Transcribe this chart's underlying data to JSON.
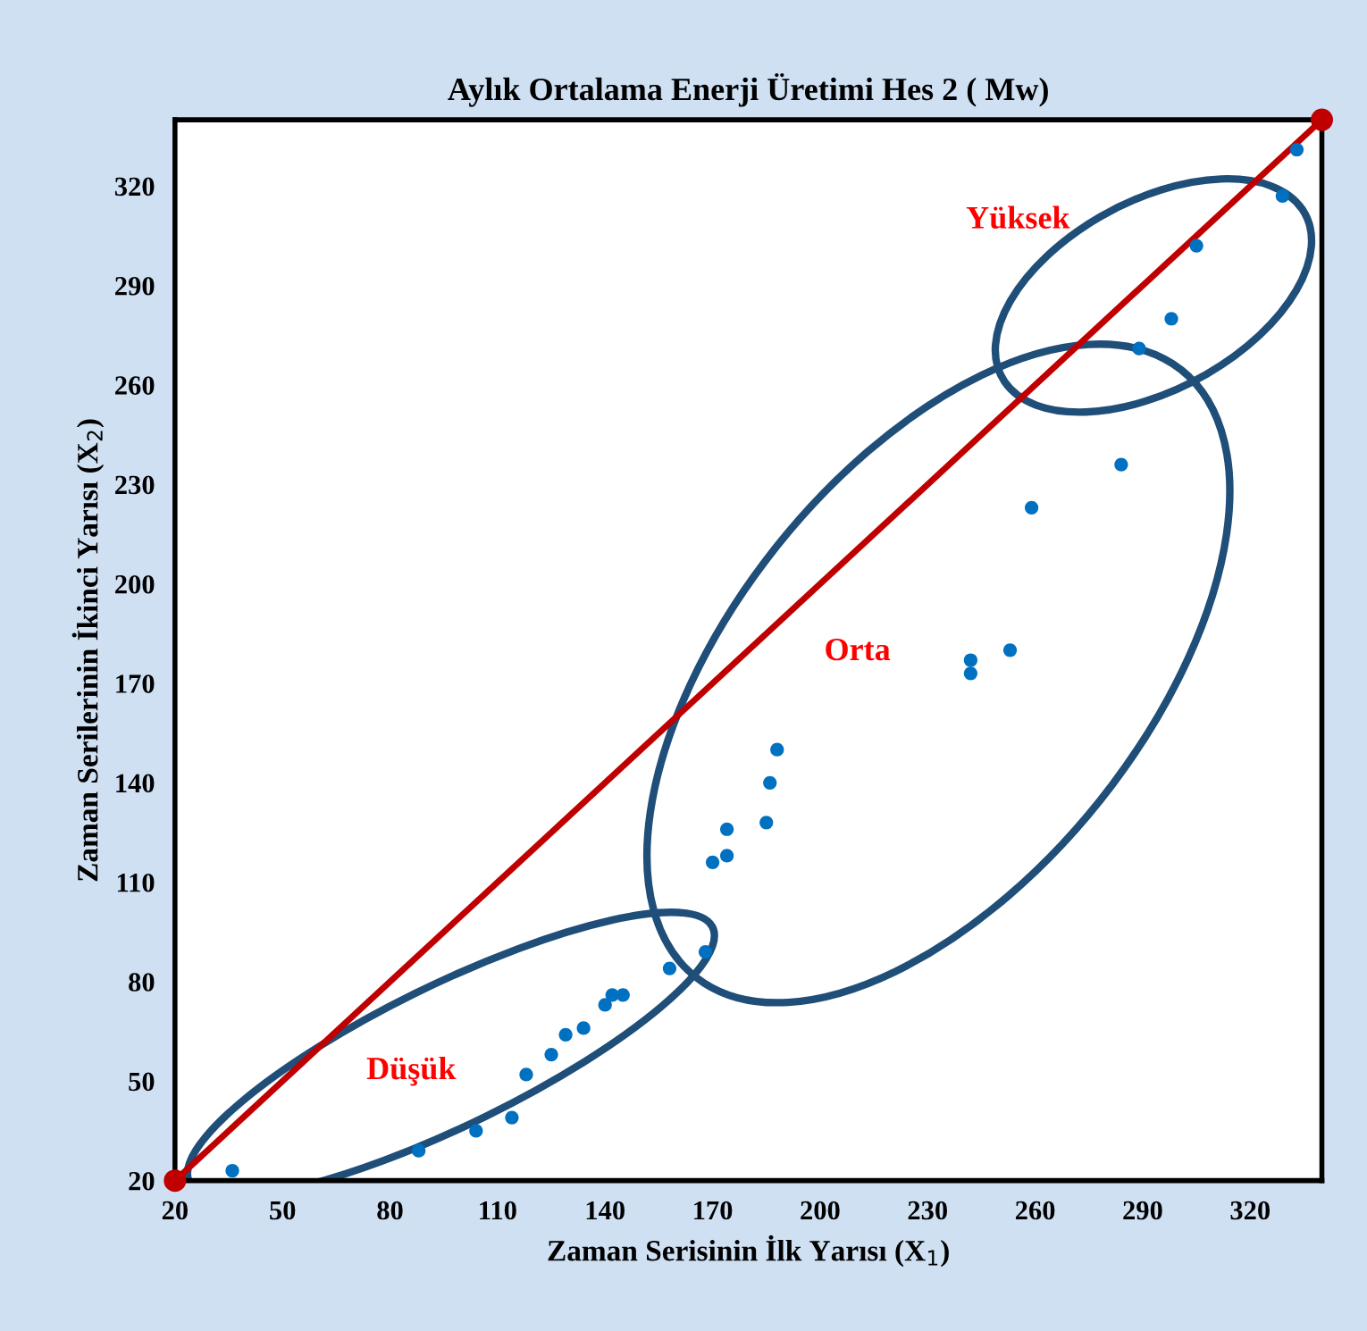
{
  "chart_data": {
    "type": "scatter",
    "title": "Aylık Ortalama Enerji Üretimi Hes 2 ( Mw)",
    "xlabel": "Zaman Serisinin İlk Yarısı (X$_{1}$)",
    "ylabel": "Zaman Serilerinin İkinci Yarısı (X$_{2}$)",
    "xlim": [
      20,
      340
    ],
    "ylim": [
      20,
      340
    ],
    "xticks": [
      20,
      50,
      80,
      110,
      140,
      170,
      200,
      230,
      260,
      290,
      320
    ],
    "yticks": [
      20,
      50,
      80,
      110,
      140,
      170,
      200,
      230,
      260,
      290,
      320
    ],
    "grid": false,
    "legend": false,
    "marker": "circle",
    "series": [
      {
        "color": "#0070c0",
        "x": [
          36,
          88,
          104,
          114,
          118,
          125,
          129,
          134,
          140,
          142,
          145,
          158,
          168,
          170,
          174,
          174,
          185,
          186,
          188,
          242,
          242,
          253,
          259,
          284,
          289,
          298,
          305,
          329,
          333
        ],
        "values": [
          23,
          29,
          35,
          39,
          52,
          58,
          64,
          66,
          73,
          76,
          76,
          84,
          89,
          116,
          118,
          126,
          128,
          140,
          150,
          177,
          173,
          180,
          223,
          236,
          271,
          280,
          302,
          317,
          331
        ]
      },
      {
        "type": "line",
        "color": "#c00000",
        "x": [
          20,
          340
        ],
        "values": [
          20,
          340
        ]
      }
    ],
    "annotations": [
      "Düşük",
      "Orta",
      "Yüksek"
    ]
  }
}
